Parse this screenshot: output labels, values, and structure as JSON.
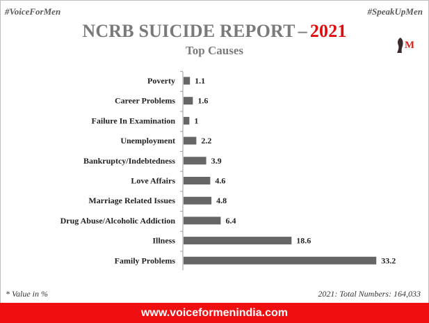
{
  "header": {
    "left_tag": "#VoiceForMen",
    "right_tag": "#SpeakUpMen",
    "title_main": "NCRB SUICIDE REPORT",
    "title_dash": "–",
    "title_year": "2021",
    "subtitle": "Top Causes"
  },
  "logo": {
    "letter": "M",
    "icon": "voiceformen-logo-icon",
    "color": "#d7261e"
  },
  "chart_data": {
    "type": "bar",
    "orientation": "horizontal",
    "categories": [
      "Poverty",
      "Career Problems",
      "Failure In Examination",
      "Unemployment",
      "Bankruptcy/Indebtedness",
      "Love Affairs",
      "Marriage Related Issues",
      "Drug Abuse/Alcoholic Addiction",
      "Illness",
      "Family Problems"
    ],
    "values": [
      1.1,
      1.6,
      1,
      2.2,
      3.9,
      4.6,
      4.8,
      6.4,
      18.6,
      33.2
    ],
    "value_labels": [
      "1.1",
      "1.6",
      "1",
      "2.2",
      "3.9",
      "4.6",
      "4.8",
      "6.4",
      "18.6",
      "33.2"
    ],
    "bar_color": "#666666",
    "xlim": [
      0,
      35
    ],
    "grid": false,
    "legend": "none"
  },
  "footer": {
    "note": "* Value in %",
    "total": "2021: Total Numbers: 164,033",
    "website": "www.voiceformenindia.com",
    "banner_color": "#ef0f11"
  }
}
